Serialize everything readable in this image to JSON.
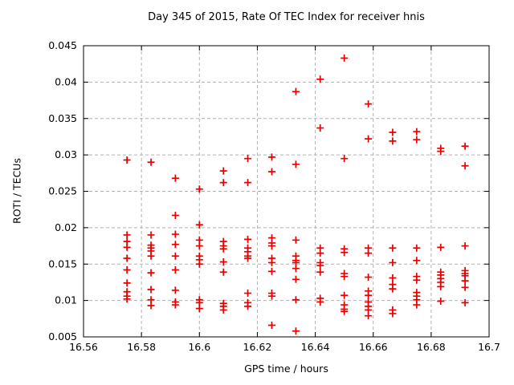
{
  "title": "Day 345 of 2015, Rate Of TEC Index for receiver hnis",
  "chart_data": {
    "type": "scatter",
    "title": "Day 345 of 2015, Rate Of TEC Index for receiver hnis",
    "xlabel": "GPS time / hours",
    "ylabel": "ROTI / TECUs",
    "xlim": [
      16.56,
      16.7
    ],
    "ylim": [
      0.005,
      0.045
    ],
    "xticks": [
      16.56,
      16.58,
      16.6,
      16.62,
      16.64,
      16.66,
      16.68,
      16.7
    ],
    "xtick_labels": [
      "16.56",
      "16.58",
      "16.6",
      "16.62",
      "16.64",
      "16.66",
      "16.68",
      "16.7"
    ],
    "yticks": [
      0.005,
      0.01,
      0.015,
      0.02,
      0.025,
      0.03,
      0.035,
      0.04,
      0.045
    ],
    "ytick_labels": [
      "0.005",
      "0.01",
      "0.015",
      "0.02",
      "0.025",
      "0.03",
      "0.035",
      "0.04",
      "0.045"
    ],
    "grid": true,
    "legend_position": "none",
    "marker": {
      "shape": "plus",
      "color": "#e60000",
      "size": 9
    },
    "grid_color": "#b0b0b0",
    "axis_color": "#000000",
    "series": [
      {
        "name": "ROTI",
        "points": [
          [
            16.575,
            0.0293
          ],
          [
            16.575,
            0.019
          ],
          [
            16.575,
            0.0181
          ],
          [
            16.575,
            0.0173
          ],
          [
            16.575,
            0.0158
          ],
          [
            16.575,
            0.0142
          ],
          [
            16.575,
            0.0124
          ],
          [
            16.575,
            0.0112
          ],
          [
            16.575,
            0.0106
          ],
          [
            16.575,
            0.0102
          ],
          [
            16.5833,
            0.029
          ],
          [
            16.5833,
            0.019
          ],
          [
            16.5833,
            0.0176
          ],
          [
            16.5833,
            0.0172
          ],
          [
            16.5833,
            0.0168
          ],
          [
            16.5833,
            0.0161
          ],
          [
            16.5833,
            0.0138
          ],
          [
            16.5833,
            0.0115
          ],
          [
            16.5833,
            0.0101
          ],
          [
            16.5833,
            0.0093
          ],
          [
            16.5917,
            0.0268
          ],
          [
            16.5917,
            0.0217
          ],
          [
            16.5917,
            0.0191
          ],
          [
            16.5917,
            0.0177
          ],
          [
            16.5917,
            0.0161
          ],
          [
            16.5917,
            0.0142
          ],
          [
            16.5917,
            0.0114
          ],
          [
            16.5917,
            0.0098
          ],
          [
            16.5917,
            0.0094
          ],
          [
            16.6,
            0.0253
          ],
          [
            16.6,
            0.0204
          ],
          [
            16.6,
            0.0183
          ],
          [
            16.6,
            0.0175
          ],
          [
            16.6,
            0.0161
          ],
          [
            16.6,
            0.0156
          ],
          [
            16.6,
            0.015
          ],
          [
            16.6,
            0.0101
          ],
          [
            16.6,
            0.0097
          ],
          [
            16.6,
            0.0089
          ],
          [
            16.6083,
            0.0278
          ],
          [
            16.6083,
            0.0262
          ],
          [
            16.6083,
            0.0181
          ],
          [
            16.6083,
            0.0175
          ],
          [
            16.6083,
            0.0171
          ],
          [
            16.6083,
            0.0153
          ],
          [
            16.6083,
            0.0139
          ],
          [
            16.6083,
            0.0096
          ],
          [
            16.6083,
            0.0092
          ],
          [
            16.6083,
            0.0087
          ],
          [
            16.6167,
            0.0295
          ],
          [
            16.6167,
            0.0262
          ],
          [
            16.6167,
            0.0184
          ],
          [
            16.6167,
            0.0172
          ],
          [
            16.6167,
            0.0167
          ],
          [
            16.6167,
            0.0161
          ],
          [
            16.6167,
            0.0158
          ],
          [
            16.6167,
            0.011
          ],
          [
            16.6167,
            0.0097
          ],
          [
            16.6167,
            0.0092
          ],
          [
            16.625,
            0.0297
          ],
          [
            16.625,
            0.0277
          ],
          [
            16.625,
            0.0186
          ],
          [
            16.625,
            0.0179
          ],
          [
            16.625,
            0.0175
          ],
          [
            16.625,
            0.0158
          ],
          [
            16.625,
            0.0152
          ],
          [
            16.625,
            0.014
          ],
          [
            16.625,
            0.011
          ],
          [
            16.625,
            0.0106
          ],
          [
            16.625,
            0.0066
          ],
          [
            16.6333,
            0.0387
          ],
          [
            16.6333,
            0.0287
          ],
          [
            16.6333,
            0.0183
          ],
          [
            16.6333,
            0.0161
          ],
          [
            16.6333,
            0.0155
          ],
          [
            16.6333,
            0.0152
          ],
          [
            16.6333,
            0.0144
          ],
          [
            16.6333,
            0.0129
          ],
          [
            16.6333,
            0.0101
          ],
          [
            16.6333,
            0.0058
          ],
          [
            16.6417,
            0.0404
          ],
          [
            16.6417,
            0.0337
          ],
          [
            16.6417,
            0.0172
          ],
          [
            16.6417,
            0.0165
          ],
          [
            16.6417,
            0.0152
          ],
          [
            16.6417,
            0.0148
          ],
          [
            16.6417,
            0.0139
          ],
          [
            16.6417,
            0.0103
          ],
          [
            16.6417,
            0.0098
          ],
          [
            16.65,
            0.0433
          ],
          [
            16.65,
            0.0295
          ],
          [
            16.65,
            0.0171
          ],
          [
            16.65,
            0.0166
          ],
          [
            16.65,
            0.0137
          ],
          [
            16.65,
            0.0133
          ],
          [
            16.65,
            0.0107
          ],
          [
            16.65,
            0.0094
          ],
          [
            16.65,
            0.0088
          ],
          [
            16.65,
            0.0085
          ],
          [
            16.6583,
            0.037
          ],
          [
            16.6583,
            0.0322
          ],
          [
            16.6583,
            0.0172
          ],
          [
            16.6583,
            0.0165
          ],
          [
            16.6583,
            0.0132
          ],
          [
            16.6583,
            0.0113
          ],
          [
            16.6583,
            0.0107
          ],
          [
            16.6583,
            0.0098
          ],
          [
            16.6583,
            0.0092
          ],
          [
            16.6583,
            0.0087
          ],
          [
            16.6583,
            0.0079
          ],
          [
            16.6667,
            0.0331
          ],
          [
            16.6667,
            0.0319
          ],
          [
            16.6667,
            0.0172
          ],
          [
            16.6667,
            0.0152
          ],
          [
            16.6667,
            0.0131
          ],
          [
            16.6667,
            0.0122
          ],
          [
            16.6667,
            0.0116
          ],
          [
            16.6667,
            0.0087
          ],
          [
            16.6667,
            0.0082
          ],
          [
            16.675,
            0.0332
          ],
          [
            16.675,
            0.0321
          ],
          [
            16.675,
            0.0172
          ],
          [
            16.675,
            0.0155
          ],
          [
            16.675,
            0.0133
          ],
          [
            16.675,
            0.0128
          ],
          [
            16.675,
            0.0111
          ],
          [
            16.675,
            0.0106
          ],
          [
            16.675,
            0.0101
          ],
          [
            16.675,
            0.0094
          ],
          [
            16.6833,
            0.0309
          ],
          [
            16.6833,
            0.0305
          ],
          [
            16.6833,
            0.0173
          ],
          [
            16.6833,
            0.0139
          ],
          [
            16.6833,
            0.0135
          ],
          [
            16.6833,
            0.013
          ],
          [
            16.6833,
            0.0125
          ],
          [
            16.6833,
            0.0119
          ],
          [
            16.6833,
            0.0099
          ],
          [
            16.6917,
            0.0312
          ],
          [
            16.6917,
            0.0285
          ],
          [
            16.6917,
            0.0175
          ],
          [
            16.6917,
            0.0141
          ],
          [
            16.6917,
            0.0137
          ],
          [
            16.6917,
            0.0134
          ],
          [
            16.6917,
            0.0127
          ],
          [
            16.6917,
            0.0118
          ],
          [
            16.6917,
            0.0097
          ]
        ]
      }
    ]
  }
}
